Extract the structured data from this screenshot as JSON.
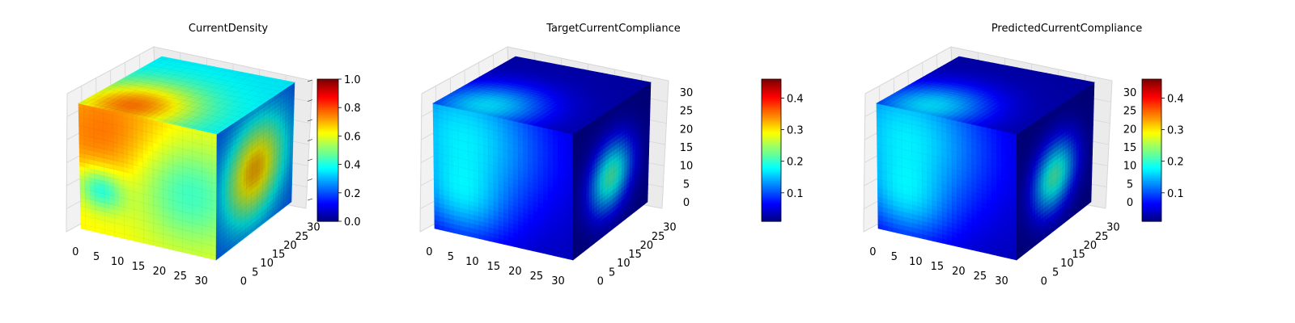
{
  "chart_data": [
    {
      "type": "heatmap",
      "subtype": "3d-voxel-cube",
      "title": "CurrentDensity",
      "x_ticks": [
        "0",
        "5",
        "10",
        "15",
        "20",
        "25",
        "30"
      ],
      "y_ticks": [
        "0",
        "5",
        "10",
        "15",
        "20",
        "25",
        "30"
      ],
      "z_ticks": [],
      "grid": "on",
      "colormap": "jet",
      "colorbar": {
        "range": [
          0.0,
          1.0
        ],
        "ticks": [
          "0.0",
          "0.2",
          "0.4",
          "0.6",
          "0.8",
          "1.0"
        ],
        "tick_values": [
          0.0,
          0.2,
          0.4,
          0.6,
          0.8,
          1.0
        ]
      },
      "field": {
        "front_base": 0.62,
        "top_base": 0.36,
        "right_base": 0.2,
        "blobs_front": [
          {
            "u": 0.25,
            "v": 0.78,
            "r": 0.36,
            "a": 0.16
          },
          {
            "u": 0.15,
            "v": 0.35,
            "r": 0.12,
            "a": -0.25
          },
          {
            "u": 0.75,
            "v": 0.5,
            "r": 0.3,
            "a": -0.22
          }
        ],
        "blobs_top": [
          {
            "u": 0.3,
            "v": 0.85,
            "r": 0.3,
            "a": 0.4
          }
        ],
        "blobs_right": [
          {
            "u": 0.5,
            "v": 0.5,
            "r": 0.28,
            "a": 0.5
          }
        ]
      }
    },
    {
      "type": "heatmap",
      "subtype": "3d-voxel-cube",
      "title": "TargetCurrentCompliance",
      "x_ticks": [
        "0",
        "5",
        "10",
        "15",
        "20",
        "25",
        "30"
      ],
      "y_ticks": [
        "0",
        "5",
        "10",
        "15",
        "20",
        "25",
        "30"
      ],
      "z_ticks": [
        "0",
        "5",
        "10",
        "15",
        "20",
        "25",
        "30"
      ],
      "grid": "on",
      "colormap": "jet",
      "colorbar": {
        "range": [
          0.01,
          0.46
        ],
        "ticks": [
          "0.1",
          "0.2",
          "0.3",
          "0.4"
        ],
        "tick_values": [
          0.1,
          0.2,
          0.3,
          0.4
        ]
      },
      "field": {
        "front_base": 0.05,
        "top_base": 0.04,
        "right_base": 0.02,
        "blobs_front": [
          {
            "u": 0.22,
            "v": 0.8,
            "r": 0.42,
            "a": 0.3
          },
          {
            "u": 0.2,
            "v": 0.25,
            "r": 0.22,
            "a": 0.16
          }
        ],
        "blobs_top": [
          {
            "u": 0.3,
            "v": 0.85,
            "r": 0.28,
            "a": 0.3
          }
        ],
        "blobs_right": [
          {
            "u": 0.5,
            "v": 0.45,
            "r": 0.2,
            "a": 0.42
          }
        ]
      }
    },
    {
      "type": "heatmap",
      "subtype": "3d-voxel-cube",
      "title": "PredictedCurrentCompliance",
      "x_ticks": [
        "0",
        "5",
        "10",
        "15",
        "20",
        "25",
        "30"
      ],
      "y_ticks": [
        "0",
        "5",
        "10",
        "15",
        "20",
        "25",
        "30"
      ],
      "z_ticks": [
        "0",
        "5",
        "10",
        "15",
        "20",
        "25",
        "30"
      ],
      "grid": "on",
      "colormap": "jet",
      "colorbar": {
        "range": [
          0.01,
          0.46
        ],
        "ticks": [
          "0.1",
          "0.2",
          "0.3",
          "0.4"
        ],
        "tick_values": [
          0.1,
          0.2,
          0.3,
          0.4
        ]
      },
      "field": {
        "front_base": 0.05,
        "top_base": 0.04,
        "right_base": 0.02,
        "blobs_front": [
          {
            "u": 0.22,
            "v": 0.8,
            "r": 0.42,
            "a": 0.3
          },
          {
            "u": 0.2,
            "v": 0.25,
            "r": 0.22,
            "a": 0.16
          }
        ],
        "blobs_top": [
          {
            "u": 0.3,
            "v": 0.85,
            "r": 0.28,
            "a": 0.3
          }
        ],
        "blobs_right": [
          {
            "u": 0.5,
            "v": 0.45,
            "r": 0.2,
            "a": 0.42
          }
        ]
      }
    }
  ]
}
